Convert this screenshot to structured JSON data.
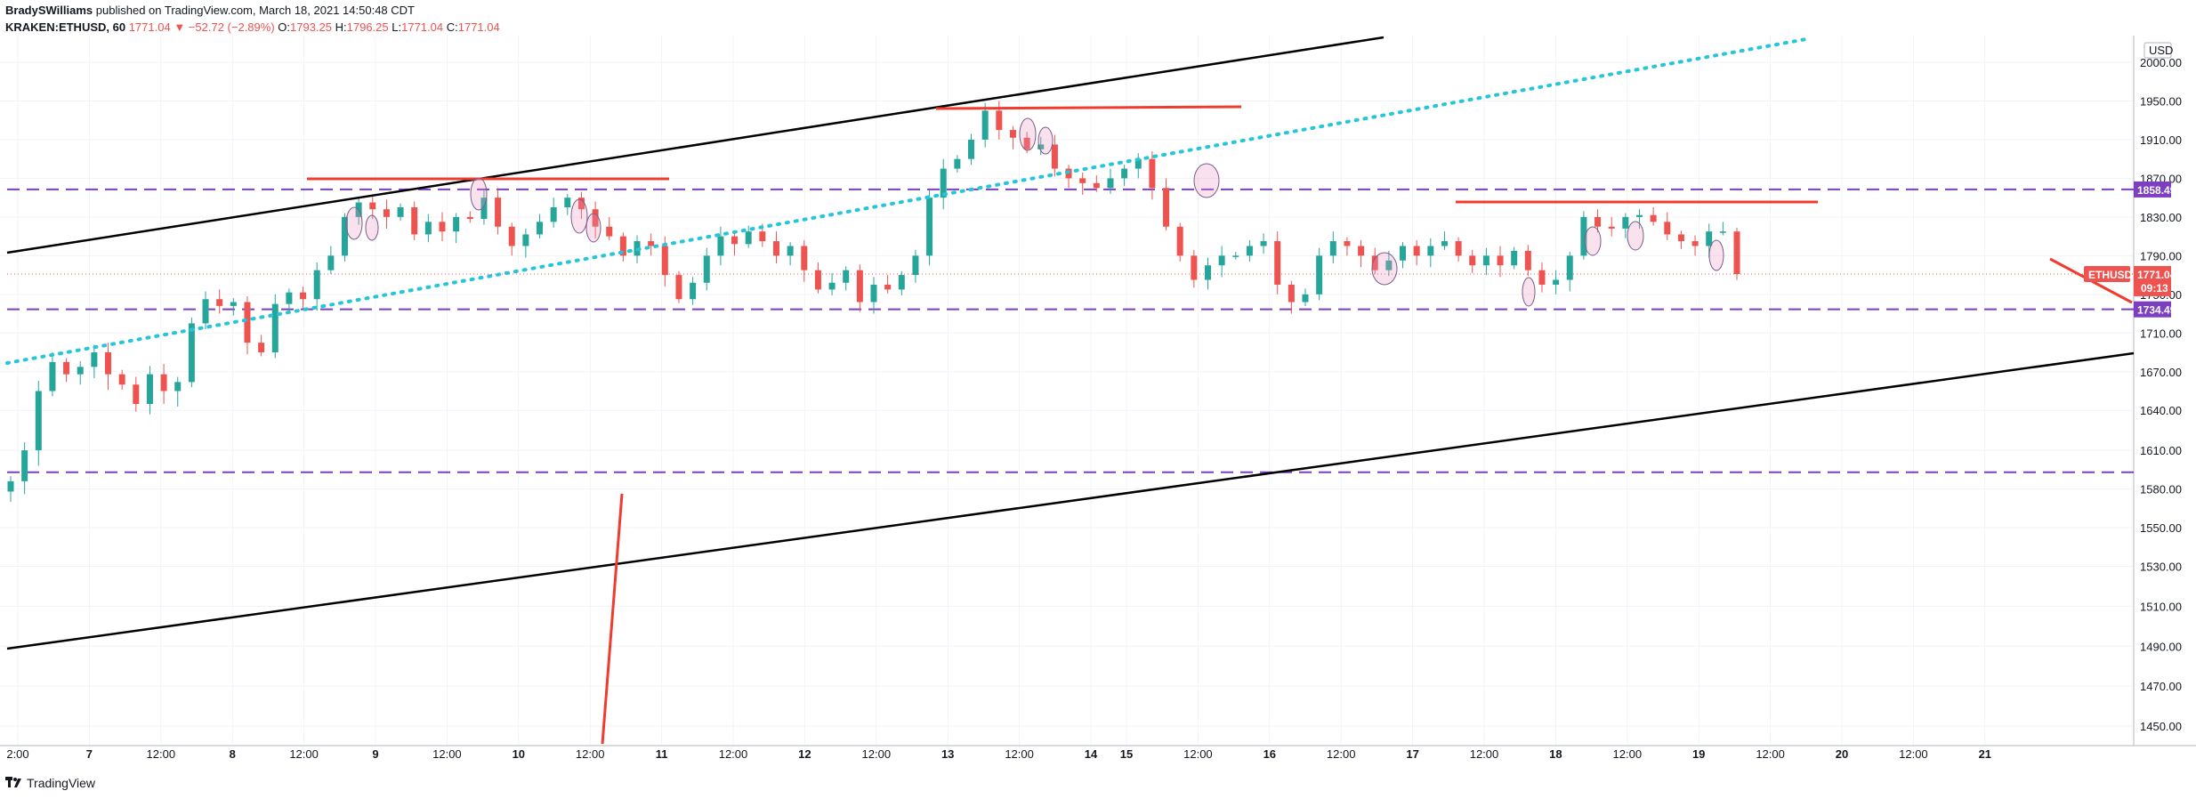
{
  "header": {
    "author": "BradySWilliams",
    "published": "published on TradingView.com, March 18, 2021 14:50:48 CDT",
    "symbol": "KRAKEN:ETHUSD, 60",
    "last": "1771.04",
    "change": "▼ −52.72 (−2.89%)",
    "o_label": "O:",
    "o": "1793.25",
    "h_label": "H:",
    "h": "1796.25",
    "l_label": "L:",
    "l": "1771.04",
    "c_label": "C:",
    "c": "1771.04"
  },
  "footer": {
    "brand": "TradingView"
  },
  "colors": {
    "up": "#26a69a",
    "down": "#ef5350",
    "support": "#7b3fbf",
    "trend": "#000000",
    "dotted": "#26c6da",
    "marker": "#ef3c2f"
  },
  "chart_data": {
    "type": "candlestick",
    "currency": "USD",
    "y_ticks": [
      1450,
      1470,
      1490,
      1510,
      1530,
      1550,
      1580,
      1610,
      1640,
      1670,
      1710,
      1750,
      1790,
      1830,
      1870,
      1910,
      1950,
      2000
    ],
    "x_ticks": [
      "2:00",
      "7",
      "12:00",
      "8",
      "12:00",
      "9",
      "12:00",
      "10",
      "12:00",
      "11",
      "12:00",
      "12",
      "12:00",
      "13",
      "12:00",
      "14",
      "15",
      "12:00",
      "16",
      "12:00",
      "17",
      "12:00",
      "18",
      "12:00",
      "19",
      "12:00",
      "20",
      "12:00",
      "21"
    ],
    "x_ticks_bold": [
      "7",
      "8",
      "9",
      "10",
      "11",
      "12",
      "13",
      "14",
      "15",
      "16",
      "17",
      "18",
      "19",
      "20",
      "21"
    ],
    "price_levels": [
      {
        "value": 1858.49,
        "label": "1858.49"
      },
      {
        "value": 1734.49,
        "label": "1734.49"
      },
      {
        "value": 1593,
        "label": ""
      }
    ],
    "last_price": {
      "symbol": "ETHUSD",
      "value": "1771.04",
      "countdown": "09:13"
    },
    "close_path": [
      [
        0,
        1586
      ],
      [
        1,
        1610
      ],
      [
        2,
        1655
      ],
      [
        3,
        1680
      ],
      [
        4,
        1668
      ],
      [
        5,
        1675
      ],
      [
        6,
        1690
      ],
      [
        7,
        1668
      ],
      [
        8,
        1660
      ],
      [
        9,
        1645
      ],
      [
        10,
        1668
      ],
      [
        11,
        1655
      ],
      [
        12,
        1662
      ],
      [
        13,
        1720
      ],
      [
        14,
        1745
      ],
      [
        15,
        1738
      ],
      [
        16,
        1742
      ],
      [
        17,
        1700
      ],
      [
        18,
        1690
      ],
      [
        19,
        1740
      ],
      [
        20,
        1752
      ],
      [
        21,
        1745
      ],
      [
        22,
        1775
      ],
      [
        23,
        1790
      ],
      [
        24,
        1830
      ],
      [
        25,
        1845
      ],
      [
        26,
        1838
      ],
      [
        27,
        1830
      ],
      [
        28,
        1840
      ],
      [
        29,
        1812
      ],
      [
        30,
        1825
      ],
      [
        31,
        1815
      ],
      [
        32,
        1830
      ],
      [
        33,
        1828
      ],
      [
        34,
        1850
      ],
      [
        35,
        1820
      ],
      [
        36,
        1800
      ],
      [
        37,
        1812
      ],
      [
        38,
        1825
      ],
      [
        39,
        1840
      ],
      [
        40,
        1850
      ],
      [
        41,
        1838
      ],
      [
        42,
        1820
      ],
      [
        43,
        1810
      ],
      [
        44,
        1790
      ],
      [
        45,
        1805
      ],
      [
        46,
        1800
      ],
      [
        47,
        1770
      ],
      [
        48,
        1745
      ],
      [
        49,
        1762
      ],
      [
        50,
        1790
      ],
      [
        51,
        1810
      ],
      [
        52,
        1802
      ],
      [
        53,
        1815
      ],
      [
        54,
        1805
      ],
      [
        55,
        1790
      ],
      [
        56,
        1800
      ],
      [
        57,
        1775
      ],
      [
        58,
        1755
      ],
      [
        59,
        1762
      ],
      [
        60,
        1775
      ],
      [
        61,
        1742
      ],
      [
        62,
        1760
      ],
      [
        63,
        1755
      ],
      [
        64,
        1770
      ],
      [
        65,
        1790
      ],
      [
        66,
        1850
      ],
      [
        67,
        1880
      ],
      [
        68,
        1890
      ],
      [
        69,
        1910
      ],
      [
        70,
        1940
      ],
      [
        71,
        1920
      ],
      [
        72,
        1912
      ],
      [
        73,
        1900
      ],
      [
        74,
        1905
      ],
      [
        75,
        1880
      ],
      [
        76,
        1870
      ],
      [
        77,
        1865
      ],
      [
        78,
        1860
      ],
      [
        79,
        1870
      ],
      [
        80,
        1880
      ],
      [
        81,
        1890
      ],
      [
        82,
        1860
      ],
      [
        83,
        1820
      ],
      [
        84,
        1790
      ],
      [
        85,
        1765
      ],
      [
        86,
        1780
      ],
      [
        87,
        1790
      ],
      [
        88,
        1790
      ],
      [
        89,
        1800
      ],
      [
        90,
        1805
      ],
      [
        91,
        1760
      ],
      [
        92,
        1742
      ],
      [
        93,
        1750
      ],
      [
        94,
        1790
      ],
      [
        95,
        1805
      ],
      [
        96,
        1800
      ],
      [
        97,
        1790
      ],
      [
        98,
        1775
      ],
      [
        99,
        1785
      ],
      [
        100,
        1800
      ],
      [
        101,
        1790
      ],
      [
        102,
        1800
      ],
      [
        103,
        1805
      ],
      [
        104,
        1790
      ],
      [
        105,
        1780
      ],
      [
        106,
        1790
      ],
      [
        107,
        1780
      ],
      [
        108,
        1795
      ],
      [
        109,
        1775
      ],
      [
        110,
        1760
      ],
      [
        111,
        1765
      ],
      [
        112,
        1790
      ],
      [
        113,
        1830
      ],
      [
        114,
        1820
      ],
      [
        115,
        1818
      ],
      [
        116,
        1830
      ],
      [
        117,
        1832
      ],
      [
        118,
        1825
      ],
      [
        119,
        1812
      ],
      [
        120,
        1805
      ],
      [
        121,
        1800
      ],
      [
        122,
        1815
      ],
      [
        123,
        1815
      ],
      [
        124,
        1771
      ]
    ]
  }
}
